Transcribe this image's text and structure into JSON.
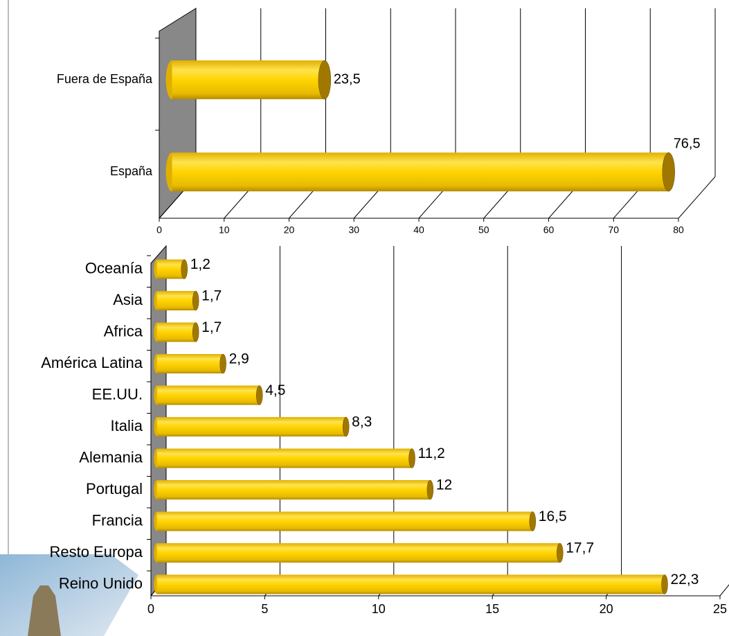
{
  "chart_data": [
    {
      "type": "bar3d",
      "categories": [
        "Fuera de España",
        "España"
      ],
      "values": [
        23.5,
        76.5
      ],
      "value_labels": [
        "23,5",
        "76,5"
      ],
      "color": "#f5c800",
      "xlim": [
        0,
        80
      ],
      "xticks": [
        0,
        10,
        20,
        30,
        40,
        50,
        60,
        70,
        80
      ],
      "grid": true
    },
    {
      "type": "bar3d",
      "categories": [
        "Oceanía",
        "Asia",
        "Africa",
        "América Latina",
        "EE.UU.",
        "Italia",
        "Alemania",
        "Portugal",
        "Francia",
        "Resto Europa",
        "Reino Unido"
      ],
      "values": [
        1.2,
        1.7,
        1.7,
        2.9,
        4.5,
        8.3,
        11.2,
        12,
        16.5,
        17.7,
        22.3
      ],
      "value_labels": [
        "1,2",
        "1,7",
        "1,7",
        "2,9",
        "4,5",
        "8,3",
        "11,2",
        "12",
        "16,5",
        "17,7",
        "22,3"
      ],
      "color": "#f5c800",
      "xlim": [
        0,
        25
      ],
      "xticks": [
        0,
        5,
        10,
        15,
        20,
        25
      ],
      "grid": true
    }
  ]
}
